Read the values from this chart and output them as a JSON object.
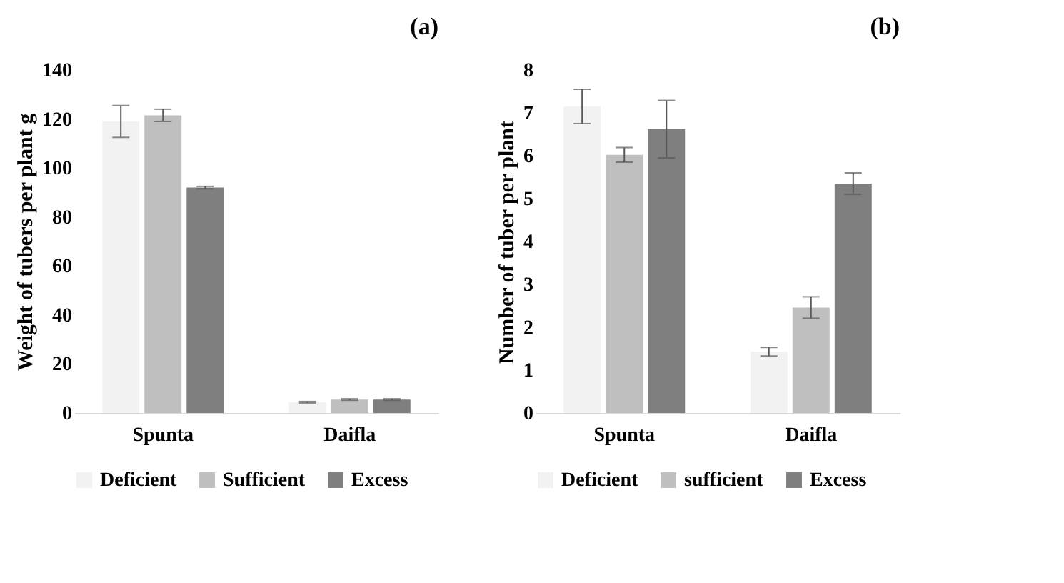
{
  "chart_data": [
    {
      "type": "bar",
      "title": "(a)",
      "ylabel": "Weight of tubers per plant g",
      "categories": [
        "Spunta",
        "Daifla"
      ],
      "series": [
        {
          "name": "Deficient",
          "color": "#f2f2f2",
          "values": [
            119,
            4.4
          ],
          "errors": [
            6.5,
            0.3
          ]
        },
        {
          "name": "Sufficient",
          "color": "#bfbfbf",
          "values": [
            121.5,
            5.5
          ],
          "errors": [
            2.5,
            0.3
          ]
        },
        {
          "name": "Excess",
          "color": "#7f7f7f",
          "values": [
            92,
            5.5
          ],
          "errors": [
            0.5,
            0.3
          ]
        }
      ],
      "ylim": [
        0,
        140
      ],
      "yticks": [
        0,
        20,
        40,
        60,
        80,
        100,
        120,
        140
      ],
      "grid": false,
      "legend": "bottom"
    },
    {
      "type": "bar",
      "title": "(b)",
      "ylabel": "Number of tuber per plant",
      "categories": [
        "Spunta",
        "Daifla"
      ],
      "series": [
        {
          "name": "Deficient",
          "color": "#f2f2f2",
          "values": [
            7.15,
            1.43
          ],
          "errors": [
            0.4,
            0.1
          ]
        },
        {
          "name": "sufficient",
          "color": "#bfbfbf",
          "values": [
            6.02,
            2.46
          ],
          "errors": [
            0.17,
            0.25
          ]
        },
        {
          "name": "Excess",
          "color": "#7f7f7f",
          "values": [
            6.62,
            5.35
          ],
          "errors": [
            0.67,
            0.25
          ]
        }
      ],
      "ylim": [
        0,
        8
      ],
      "yticks": [
        0,
        1,
        2,
        3,
        4,
        5,
        6,
        7,
        8
      ],
      "grid": false,
      "legend": "bottom"
    }
  ]
}
